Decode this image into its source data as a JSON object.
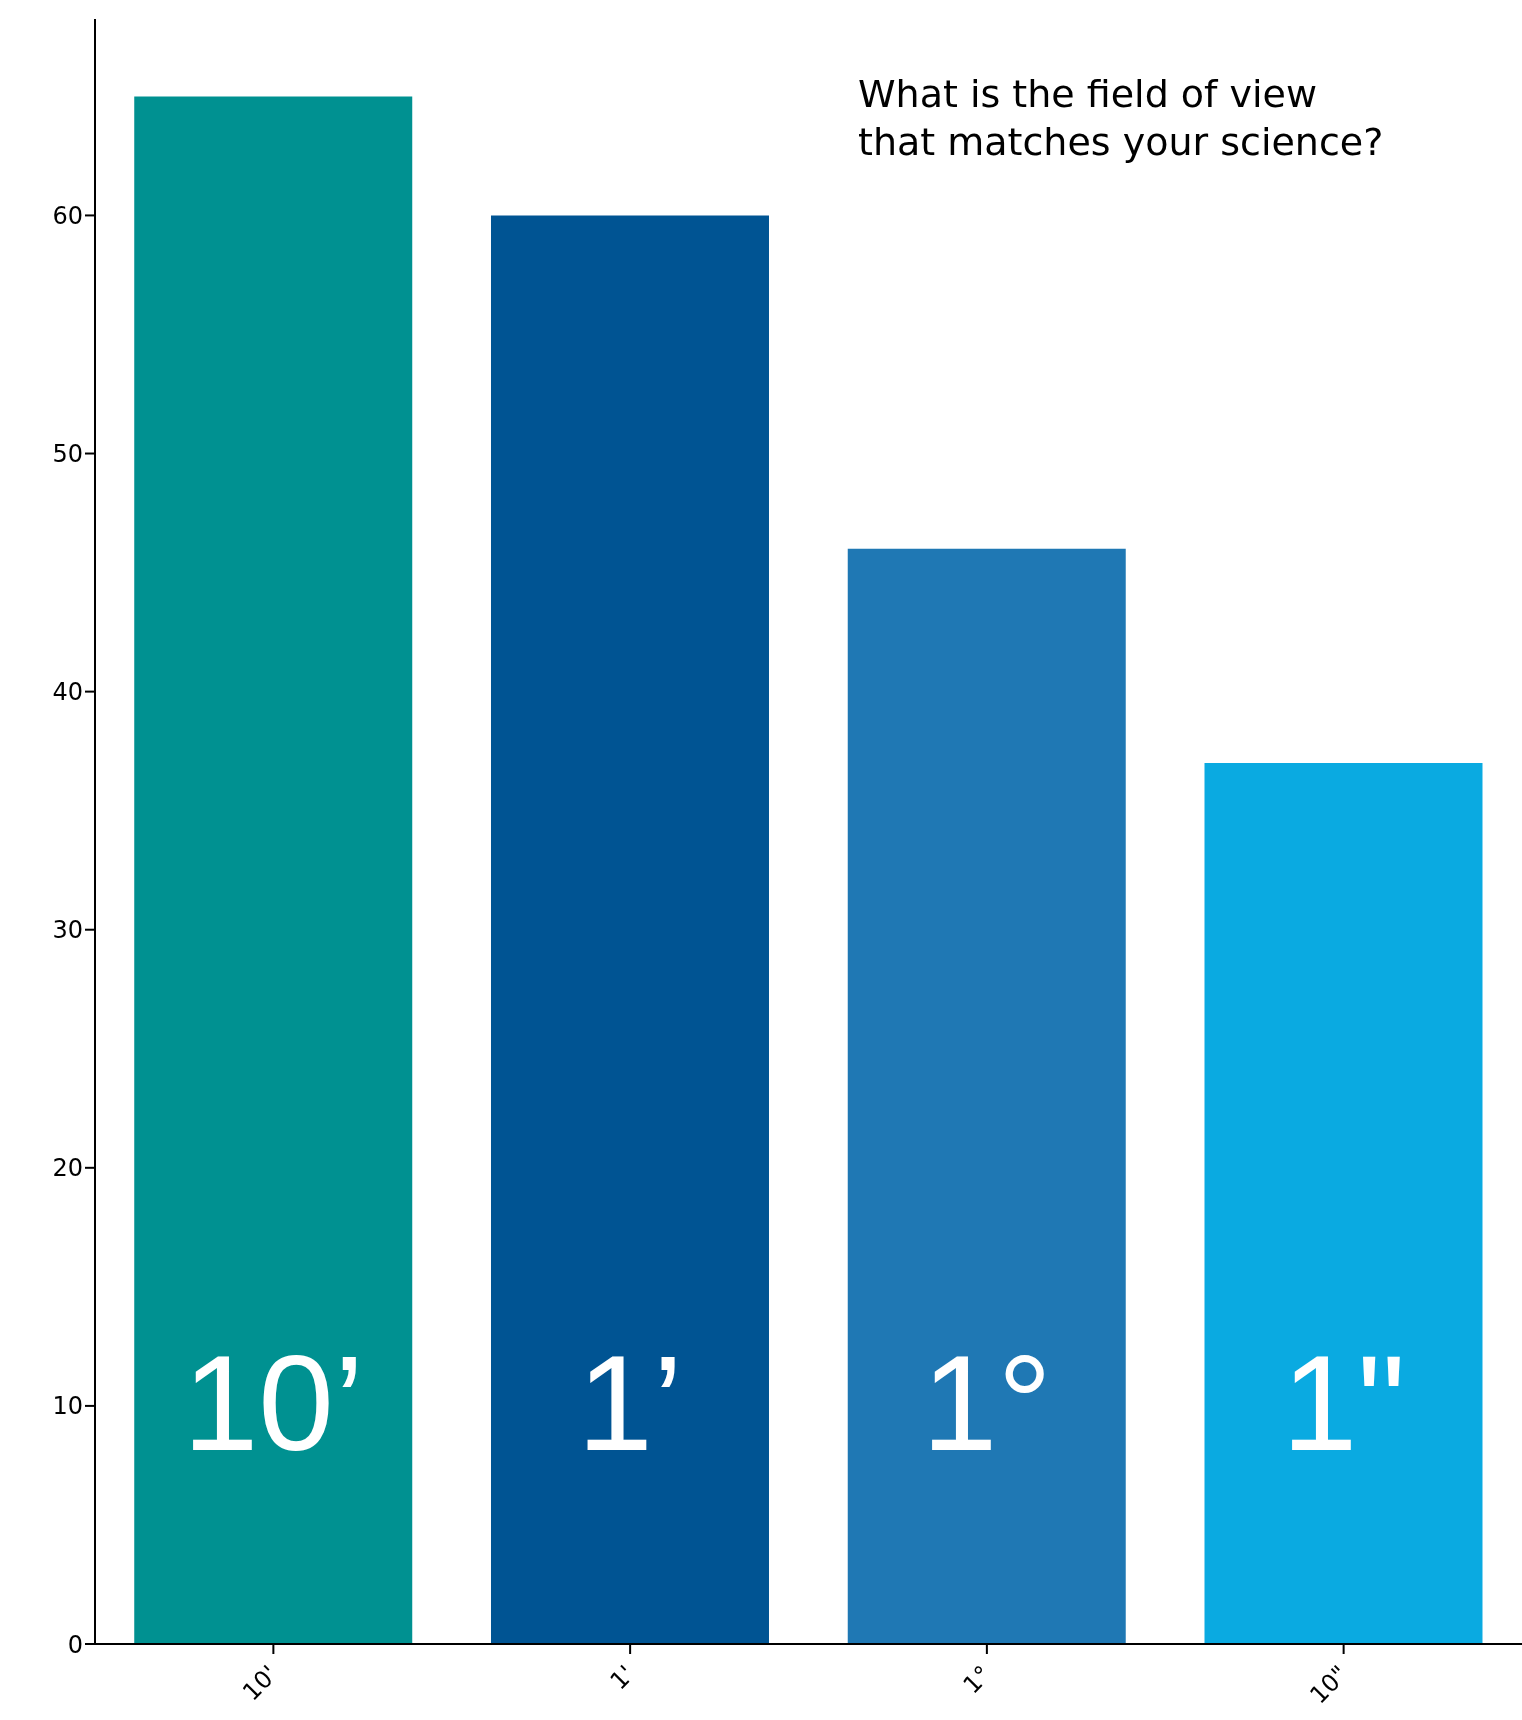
{
  "chart_data": {
    "type": "bar",
    "categories": [
      "10'",
      "1'",
      "1°",
      "10\""
    ],
    "values": [
      65,
      60,
      46,
      37
    ],
    "colors": [
      "#009191",
      "#005493",
      "#1f78b4",
      "#0aaae1"
    ],
    "ylim": [
      0,
      68.25
    ],
    "yticks": [
      0,
      10,
      20,
      30,
      40,
      50,
      60
    ],
    "grid": false,
    "annotations": [
      "What is the field of view\nthat matches your science?",
      "10’",
      "1’",
      "1°",
      "1\""
    ]
  }
}
